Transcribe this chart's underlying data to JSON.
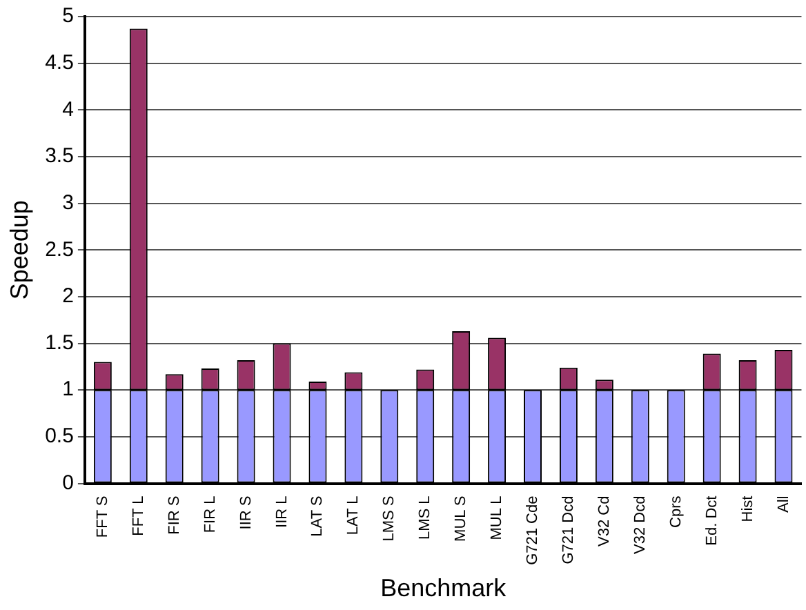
{
  "chart_data": {
    "type": "bar",
    "stacked": true,
    "xlabel": "Benchmark",
    "ylabel": "Speedup",
    "categories": [
      "FFT S",
      "FFT L",
      "FIR S",
      "FIR L",
      "IIR S",
      "IIR L",
      "LAT S",
      "LAT L",
      "LMS S",
      "LMS L",
      "MUL S",
      "MUL L",
      "G721 Cde",
      "G721 Dcd",
      "V32 Cd",
      "V32 Dcd",
      "Cprs",
      "Ed. Dct",
      "Hist",
      "All"
    ],
    "series": [
      {
        "color": "#9999ff",
        "values": [
          1,
          1,
          1,
          1,
          1,
          1,
          1,
          1,
          1,
          1,
          1,
          1,
          1,
          1,
          1,
          1,
          1,
          1,
          1,
          1
        ]
      },
      {
        "color": "#993366",
        "values": [
          0.3,
          3.87,
          0.17,
          0.23,
          0.32,
          0.5,
          0.09,
          0.19,
          0,
          0.22,
          0.63,
          0.56,
          0,
          0.24,
          0.11,
          0,
          0,
          0.39,
          0.32,
          0.43
        ]
      }
    ],
    "ylim": [
      0,
      5
    ],
    "yticks": [
      0,
      0.5,
      1,
      1.5,
      2,
      2.5,
      3,
      3.5,
      4,
      4.5,
      5
    ],
    "grid": "y",
    "legend": false
  }
}
